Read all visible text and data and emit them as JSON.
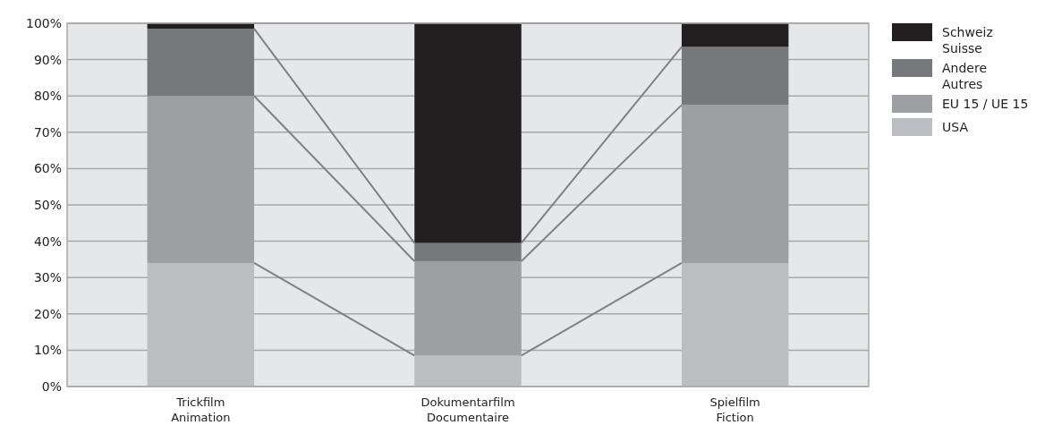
{
  "chart_data": {
    "type": "bar",
    "stacked": true,
    "categories": [
      "Trickfilm\nAnimation",
      "Dokumentarfilm\nDocumentaire",
      "Spielfilm\nFiction"
    ],
    "series": [
      {
        "name": "USA",
        "color": "#bcbdc0",
        "values": [
          34,
          8.5,
          34
        ]
      },
      {
        "name": "EU 15 / UE 15",
        "color": "#9e9fa2",
        "values": [
          46,
          26,
          43.5
        ]
      },
      {
        "name": "Andere\nAutres",
        "color": "#77787b",
        "values": [
          18.5,
          5,
          16
        ]
      },
      {
        "name": "Schweiz\nSuisse",
        "color": "#231f20",
        "values": [
          1.5,
          60.5,
          6.5
        ]
      }
    ],
    "ylim": [
      0,
      100
    ],
    "yticks": [
      {
        "value": 0,
        "label": "0%"
      },
      {
        "value": 10,
        "label": "10%"
      },
      {
        "value": 20,
        "label": "20%"
      },
      {
        "value": 30,
        "label": "30%"
      },
      {
        "value": 40,
        "label": "40%"
      },
      {
        "value": 50,
        "label": "50%"
      },
      {
        "value": 60,
        "label": "60%"
      },
      {
        "value": 70,
        "label": "70%"
      },
      {
        "value": 80,
        "label": "80%"
      },
      {
        "value": 90,
        "label": "90%"
      },
      {
        "value": 100,
        "label": "100%"
      }
    ],
    "grid": "y",
    "legend": "top right"
  }
}
